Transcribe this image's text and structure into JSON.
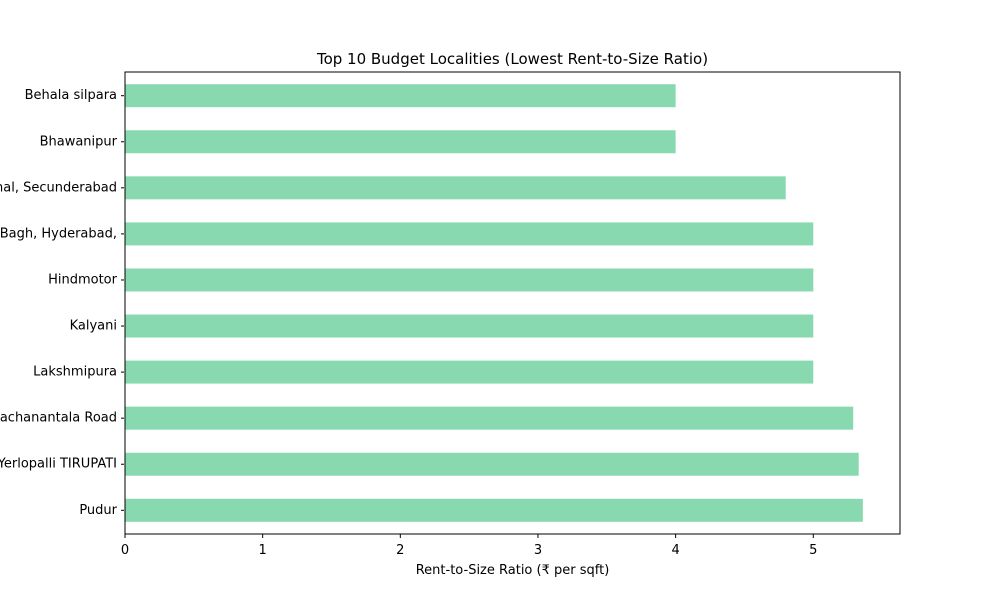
{
  "chart_data": {
    "type": "bar",
    "orientation": "horizontal",
    "title": "Top 10 Budget Localities (Lowest Rent-to-Size Ratio)",
    "xlabel": "Rent-to-Size Ratio (₹ per sqft)",
    "ylabel": "",
    "categories": [
      "Behala silpara",
      "Bhawanipur",
      "Bolarum, Kapra, Medchal, Secunderabad",
      "Bandlaguda Jagir, Himayat Bagh, Hyderabad,",
      "Hindmotor",
      "Kalyani",
      "Lakshmipura",
      "Kachanantala Road",
      "Yerlopalli TIRUPATI",
      "Pudur"
    ],
    "values": [
      4.0,
      4.0,
      4.8,
      5.0,
      5.0,
      5.0,
      5.0,
      5.29,
      5.33,
      5.36
    ],
    "xlim": [
      0,
      5.63
    ],
    "xticks": [
      0,
      1,
      2,
      3,
      4,
      5
    ],
    "bar_color": "#88d9af",
    "grid": false,
    "legend": "none"
  }
}
